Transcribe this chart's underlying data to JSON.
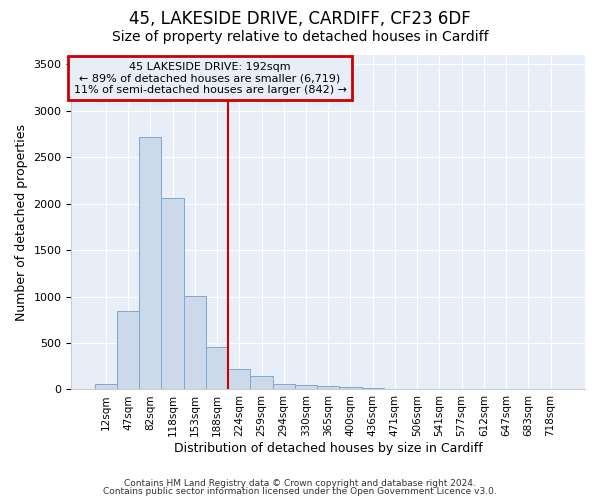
{
  "title1": "45, LAKESIDE DRIVE, CARDIFF, CF23 6DF",
  "title2": "Size of property relative to detached houses in Cardiff",
  "xlabel": "Distribution of detached houses by size in Cardiff",
  "ylabel": "Number of detached properties",
  "bar_labels": [
    "12sqm",
    "47sqm",
    "82sqm",
    "118sqm",
    "153sqm",
    "188sqm",
    "224sqm",
    "259sqm",
    "294sqm",
    "330sqm",
    "365sqm",
    "400sqm",
    "436sqm",
    "471sqm",
    "506sqm",
    "541sqm",
    "577sqm",
    "612sqm",
    "647sqm",
    "683sqm",
    "718sqm"
  ],
  "bar_values": [
    55,
    840,
    2720,
    2060,
    1010,
    460,
    215,
    150,
    60,
    50,
    35,
    25,
    20,
    0,
    0,
    0,
    0,
    0,
    0,
    0,
    0
  ],
  "bar_color": "#ccd9ea",
  "bar_edgecolor": "#7da8d0",
  "ylim": [
    0,
    3600
  ],
  "yticks": [
    0,
    500,
    1000,
    1500,
    2000,
    2500,
    3000,
    3500
  ],
  "vline_x": 5.5,
  "vline_color": "#cc0000",
  "annotation_text": "45 LAKESIDE DRIVE: 192sqm\n← 89% of detached houses are smaller (6,719)\n11% of semi-detached houses are larger (842) →",
  "annotation_box_color": "#cc0000",
  "background_color": "#ffffff",
  "plot_bg_color": "#e8eef7",
  "grid_color": "#ffffff",
  "footer_line1": "Contains HM Land Registry data © Crown copyright and database right 2024.",
  "footer_line2": "Contains public sector information licensed under the Open Government Licence v3.0.",
  "title1_fontsize": 12,
  "title2_fontsize": 10
}
